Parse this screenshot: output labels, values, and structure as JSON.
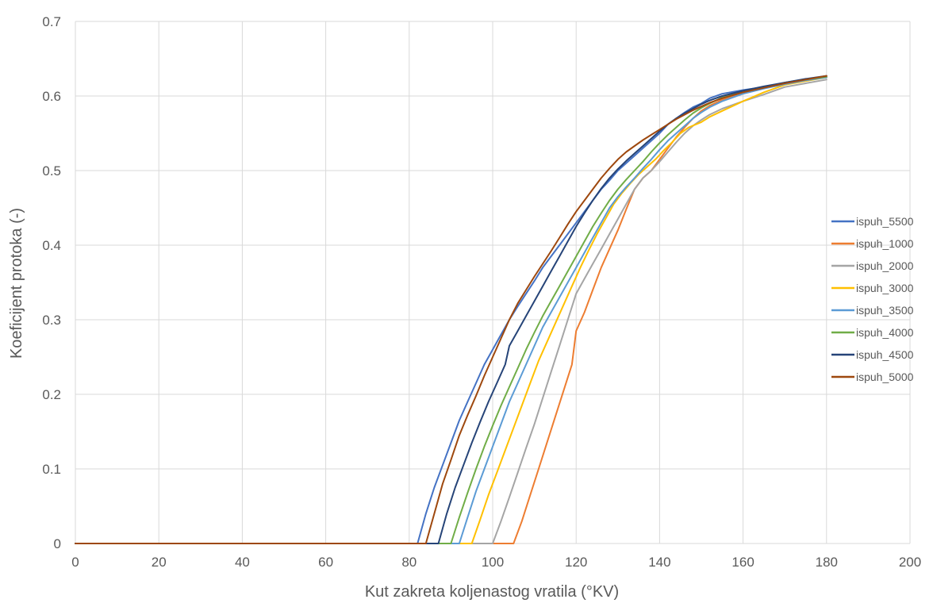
{
  "chart_data": {
    "type": "line",
    "title": "",
    "xlabel": "Kut zakreta koljenastog vratila (°KV)",
    "ylabel": "Koeficijent protoka (-)",
    "xlim": [
      0,
      200
    ],
    "ylim": [
      0,
      0.7
    ],
    "x_ticks": [
      "0",
      "20",
      "40",
      "60",
      "80",
      "100",
      "120",
      "140",
      "160",
      "180",
      "200"
    ],
    "y_ticks": [
      "0",
      "0.1",
      "0.2",
      "0.3",
      "0.4",
      "0.5",
      "0.6",
      "0.7"
    ],
    "grid": true,
    "legend_position": "right",
    "series": [
      {
        "name": "ispuh_5500",
        "color": "#4472C4",
        "points": [
          [
            0,
            0
          ],
          [
            82,
            0
          ],
          [
            84,
            0.04
          ],
          [
            86,
            0.075
          ],
          [
            88,
            0.105
          ],
          [
            90,
            0.135
          ],
          [
            92,
            0.165
          ],
          [
            94,
            0.19
          ],
          [
            96,
            0.215
          ],
          [
            98,
            0.24
          ],
          [
            100,
            0.26
          ],
          [
            102,
            0.28
          ],
          [
            104,
            0.3
          ],
          [
            106,
            0.318
          ],
          [
            108,
            0.335
          ],
          [
            110,
            0.352
          ],
          [
            112,
            0.37
          ],
          [
            114,
            0.385
          ],
          [
            116,
            0.4
          ],
          [
            118,
            0.415
          ],
          [
            120,
            0.43
          ],
          [
            122,
            0.445
          ],
          [
            124,
            0.46
          ],
          [
            126,
            0.475
          ],
          [
            128,
            0.487
          ],
          [
            130,
            0.5
          ],
          [
            132,
            0.51
          ],
          [
            134,
            0.52
          ],
          [
            136,
            0.53
          ],
          [
            138,
            0.54
          ],
          [
            140,
            0.55
          ],
          [
            142,
            0.562
          ],
          [
            144,
            0.57
          ],
          [
            146,
            0.578
          ],
          [
            148,
            0.585
          ],
          [
            150,
            0.59
          ],
          [
            152,
            0.597
          ],
          [
            155,
            0.603
          ],
          [
            160,
            0.608
          ],
          [
            165,
            0.612
          ],
          [
            170,
            0.617
          ],
          [
            175,
            0.621
          ],
          [
            180,
            0.625
          ]
        ]
      },
      {
        "name": "ispuh_1000",
        "color": "#ED7D31",
        "points": [
          [
            0,
            0
          ],
          [
            105,
            0
          ],
          [
            107,
            0.03
          ],
          [
            109,
            0.065
          ],
          [
            111,
            0.1
          ],
          [
            113,
            0.135
          ],
          [
            115,
            0.17
          ],
          [
            117,
            0.205
          ],
          [
            119,
            0.24
          ],
          [
            120,
            0.285
          ],
          [
            122,
            0.31
          ],
          [
            124,
            0.34
          ],
          [
            126,
            0.37
          ],
          [
            128,
            0.395
          ],
          [
            130,
            0.42
          ],
          [
            132,
            0.448
          ],
          [
            134,
            0.475
          ],
          [
            136,
            0.49
          ],
          [
            138,
            0.5
          ],
          [
            140,
            0.515
          ],
          [
            142,
            0.53
          ],
          [
            144,
            0.545
          ],
          [
            146,
            0.558
          ],
          [
            148,
            0.57
          ],
          [
            150,
            0.58
          ],
          [
            152,
            0.587
          ],
          [
            155,
            0.595
          ],
          [
            160,
            0.603
          ],
          [
            165,
            0.612
          ],
          [
            170,
            0.618
          ],
          [
            175,
            0.622
          ],
          [
            180,
            0.626
          ]
        ]
      },
      {
        "name": "ispuh_2000",
        "color": "#A5A5A5",
        "points": [
          [
            0,
            0
          ],
          [
            100,
            0
          ],
          [
            102,
            0.03
          ],
          [
            104,
            0.062
          ],
          [
            106,
            0.095
          ],
          [
            108,
            0.128
          ],
          [
            110,
            0.16
          ],
          [
            112,
            0.195
          ],
          [
            114,
            0.23
          ],
          [
            116,
            0.265
          ],
          [
            118,
            0.3
          ],
          [
            120,
            0.335
          ],
          [
            122,
            0.355
          ],
          [
            124,
            0.375
          ],
          [
            126,
            0.395
          ],
          [
            128,
            0.415
          ],
          [
            130,
            0.435
          ],
          [
            132,
            0.455
          ],
          [
            134,
            0.475
          ],
          [
            136,
            0.49
          ],
          [
            138,
            0.5
          ],
          [
            140,
            0.512
          ],
          [
            142,
            0.525
          ],
          [
            144,
            0.538
          ],
          [
            146,
            0.55
          ],
          [
            148,
            0.56
          ],
          [
            150,
            0.568
          ],
          [
            152,
            0.575
          ],
          [
            155,
            0.583
          ],
          [
            160,
            0.593
          ],
          [
            165,
            0.602
          ],
          [
            170,
            0.612
          ],
          [
            175,
            0.617
          ],
          [
            180,
            0.622
          ]
        ]
      },
      {
        "name": "ispuh_3000",
        "color": "#FFC000",
        "points": [
          [
            0,
            0
          ],
          [
            95,
            0
          ],
          [
            97,
            0.032
          ],
          [
            99,
            0.065
          ],
          [
            101,
            0.095
          ],
          [
            103,
            0.125
          ],
          [
            105,
            0.155
          ],
          [
            107,
            0.185
          ],
          [
            109,
            0.215
          ],
          [
            111,
            0.245
          ],
          [
            113,
            0.27
          ],
          [
            115,
            0.295
          ],
          [
            117,
            0.32
          ],
          [
            119,
            0.345
          ],
          [
            121,
            0.37
          ],
          [
            123,
            0.393
          ],
          [
            125,
            0.415
          ],
          [
            127,
            0.435
          ],
          [
            129,
            0.455
          ],
          [
            131,
            0.47
          ],
          [
            133,
            0.483
          ],
          [
            135,
            0.495
          ],
          [
            137,
            0.505
          ],
          [
            139,
            0.515
          ],
          [
            141,
            0.527
          ],
          [
            143,
            0.538
          ],
          [
            145,
            0.55
          ],
          [
            147,
            0.558
          ],
          [
            150,
            0.565
          ],
          [
            152,
            0.572
          ],
          [
            155,
            0.58
          ],
          [
            160,
            0.593
          ],
          [
            165,
            0.605
          ],
          [
            170,
            0.615
          ],
          [
            175,
            0.62
          ],
          [
            180,
            0.625
          ]
        ]
      },
      {
        "name": "ispuh_3500",
        "color": "#5B9BD5",
        "points": [
          [
            0,
            0
          ],
          [
            92,
            0
          ],
          [
            94,
            0.035
          ],
          [
            96,
            0.07
          ],
          [
            98,
            0.1
          ],
          [
            100,
            0.13
          ],
          [
            102,
            0.16
          ],
          [
            104,
            0.19
          ],
          [
            106,
            0.215
          ],
          [
            108,
            0.24
          ],
          [
            110,
            0.265
          ],
          [
            112,
            0.29
          ],
          [
            114,
            0.31
          ],
          [
            116,
            0.33
          ],
          [
            118,
            0.35
          ],
          [
            120,
            0.37
          ],
          [
            122,
            0.39
          ],
          [
            124,
            0.41
          ],
          [
            126,
            0.43
          ],
          [
            128,
            0.45
          ],
          [
            130,
            0.465
          ],
          [
            132,
            0.478
          ],
          [
            134,
            0.49
          ],
          [
            136,
            0.503
          ],
          [
            138,
            0.515
          ],
          [
            140,
            0.528
          ],
          [
            142,
            0.54
          ],
          [
            144,
            0.55
          ],
          [
            146,
            0.56
          ],
          [
            148,
            0.57
          ],
          [
            150,
            0.578
          ],
          [
            152,
            0.585
          ],
          [
            155,
            0.593
          ],
          [
            160,
            0.603
          ],
          [
            165,
            0.61
          ],
          [
            170,
            0.616
          ],
          [
            175,
            0.621
          ],
          [
            180,
            0.625
          ]
        ]
      },
      {
        "name": "ispuh_4000",
        "color": "#70AD47",
        "points": [
          [
            0,
            0
          ],
          [
            90,
            0
          ],
          [
            92,
            0.035
          ],
          [
            94,
            0.068
          ],
          [
            96,
            0.1
          ],
          [
            98,
            0.13
          ],
          [
            100,
            0.158
          ],
          [
            102,
            0.185
          ],
          [
            104,
            0.21
          ],
          [
            106,
            0.235
          ],
          [
            108,
            0.26
          ],
          [
            110,
            0.283
          ],
          [
            112,
            0.305
          ],
          [
            114,
            0.325
          ],
          [
            116,
            0.345
          ],
          [
            118,
            0.365
          ],
          [
            120,
            0.385
          ],
          [
            122,
            0.405
          ],
          [
            124,
            0.425
          ],
          [
            126,
            0.443
          ],
          [
            128,
            0.46
          ],
          [
            130,
            0.475
          ],
          [
            132,
            0.488
          ],
          [
            134,
            0.5
          ],
          [
            136,
            0.512
          ],
          [
            138,
            0.525
          ],
          [
            140,
            0.537
          ],
          [
            142,
            0.548
          ],
          [
            144,
            0.558
          ],
          [
            146,
            0.568
          ],
          [
            148,
            0.577
          ],
          [
            150,
            0.584
          ],
          [
            152,
            0.59
          ],
          [
            155,
            0.598
          ],
          [
            160,
            0.606
          ],
          [
            165,
            0.612
          ],
          [
            170,
            0.618
          ],
          [
            175,
            0.622
          ],
          [
            180,
            0.626
          ]
        ]
      },
      {
        "name": "ispuh_4500",
        "color": "#264478",
        "points": [
          [
            0,
            0
          ],
          [
            87,
            0
          ],
          [
            89,
            0.04
          ],
          [
            91,
            0.075
          ],
          [
            93,
            0.105
          ],
          [
            95,
            0.135
          ],
          [
            97,
            0.163
          ],
          [
            99,
            0.19
          ],
          [
            101,
            0.215
          ],
          [
            103,
            0.24
          ],
          [
            104,
            0.265
          ],
          [
            106,
            0.285
          ],
          [
            108,
            0.305
          ],
          [
            110,
            0.325
          ],
          [
            112,
            0.345
          ],
          [
            114,
            0.365
          ],
          [
            116,
            0.385
          ],
          [
            118,
            0.405
          ],
          [
            120,
            0.425
          ],
          [
            122,
            0.443
          ],
          [
            124,
            0.46
          ],
          [
            126,
            0.476
          ],
          [
            128,
            0.49
          ],
          [
            130,
            0.502
          ],
          [
            132,
            0.513
          ],
          [
            134,
            0.523
          ],
          [
            136,
            0.533
          ],
          [
            138,
            0.543
          ],
          [
            140,
            0.553
          ],
          [
            142,
            0.562
          ],
          [
            144,
            0.57
          ],
          [
            146,
            0.577
          ],
          [
            148,
            0.583
          ],
          [
            150,
            0.589
          ],
          [
            152,
            0.594
          ],
          [
            155,
            0.6
          ],
          [
            160,
            0.607
          ],
          [
            165,
            0.613
          ],
          [
            170,
            0.618
          ],
          [
            175,
            0.623
          ],
          [
            180,
            0.627
          ]
        ]
      },
      {
        "name": "ispuh_5000",
        "color": "#9E480E",
        "points": [
          [
            0,
            0
          ],
          [
            84,
            0
          ],
          [
            86,
            0.04
          ],
          [
            88,
            0.08
          ],
          [
            90,
            0.112
          ],
          [
            92,
            0.145
          ],
          [
            94,
            0.172
          ],
          [
            96,
            0.198
          ],
          [
            98,
            0.225
          ],
          [
            100,
            0.25
          ],
          [
            102,
            0.275
          ],
          [
            104,
            0.3
          ],
          [
            106,
            0.322
          ],
          [
            108,
            0.34
          ],
          [
            110,
            0.358
          ],
          [
            112,
            0.375
          ],
          [
            114,
            0.392
          ],
          [
            116,
            0.41
          ],
          [
            118,
            0.428
          ],
          [
            120,
            0.445
          ],
          [
            122,
            0.46
          ],
          [
            124,
            0.475
          ],
          [
            126,
            0.49
          ],
          [
            128,
            0.503
          ],
          [
            130,
            0.515
          ],
          [
            132,
            0.525
          ],
          [
            134,
            0.533
          ],
          [
            136,
            0.541
          ],
          [
            138,
            0.548
          ],
          [
            140,
            0.555
          ],
          [
            142,
            0.562
          ],
          [
            144,
            0.569
          ],
          [
            146,
            0.575
          ],
          [
            148,
            0.581
          ],
          [
            150,
            0.586
          ],
          [
            152,
            0.591
          ],
          [
            155,
            0.597
          ],
          [
            160,
            0.605
          ],
          [
            165,
            0.611
          ],
          [
            170,
            0.617
          ],
          [
            175,
            0.622
          ],
          [
            180,
            0.627
          ]
        ]
      }
    ]
  }
}
